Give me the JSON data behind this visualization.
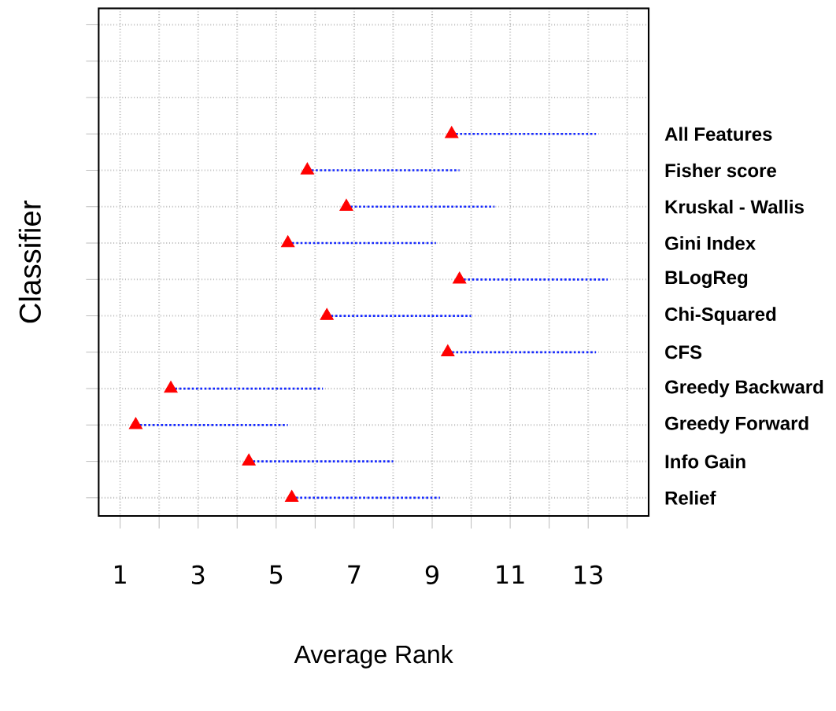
{
  "chart_data": {
    "type": "scatter",
    "orientation": "horizontal",
    "xlabel": "Average Rank",
    "ylabel": "Classifier",
    "categories": [
      null,
      null,
      null,
      "All Features",
      "Fisher score",
      "Kruskal - Wallis",
      "Gini Index",
      "BLogReg",
      "Chi-Squared",
      "CFS",
      "Greedy Backward",
      "Greedy Forward",
      "Info Gain",
      "Relief"
    ],
    "series": [
      {
        "color": "#ff0000",
        "values": [
          null,
          null,
          null,
          9.5,
          5.8,
          6.8,
          5.3,
          9.7,
          6.3,
          9.4,
          2.3,
          1.4,
          4.3,
          5.4
        ],
        "errors": [
          null,
          null,
          null,
          [
            9.5,
            13.2
          ],
          [
            5.8,
            9.7
          ],
          [
            6.8,
            10.6
          ],
          [
            5.3,
            9.1
          ],
          [
            9.7,
            13.5
          ],
          [
            6.3,
            10.0
          ],
          [
            9.4,
            13.2
          ],
          [
            2.3,
            6.2
          ],
          [
            1.4,
            5.3
          ],
          [
            4.3,
            8.0
          ],
          [
            5.4,
            9.2
          ]
        ]
      }
    ],
    "xlim": [
      0.45,
      14.55
    ],
    "xticks": [
      1,
      {
        "value": 2,
        "label": null
      },
      3,
      {
        "value": 4,
        "label": null
      },
      5,
      {
        "value": 6,
        "label": null
      },
      7,
      {
        "value": 8,
        "label": null
      },
      9,
      {
        "value": 10,
        "label": null
      },
      11,
      {
        "value": 12,
        "label": null
      },
      13,
      {
        "value": 14,
        "label": null
      }
    ],
    "grid": true,
    "marker": "triangle",
    "line_style": "dotted"
  }
}
